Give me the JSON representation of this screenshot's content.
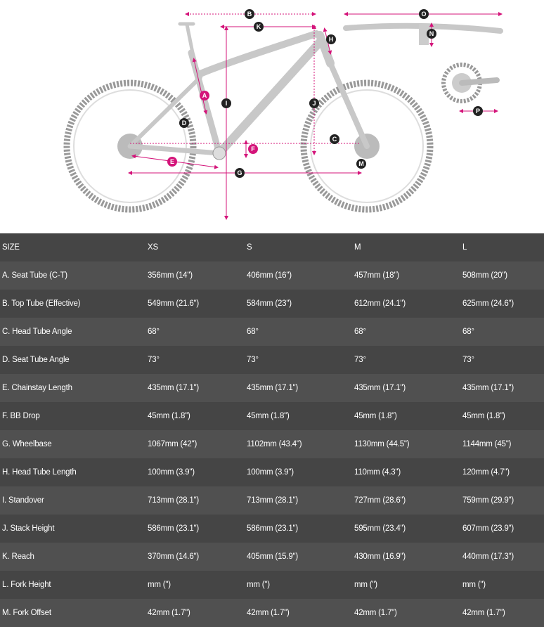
{
  "diagram": {
    "labels": [
      "A",
      "B",
      "C",
      "D",
      "E",
      "F",
      "G",
      "H",
      "I",
      "J",
      "K",
      "M",
      "N",
      "O",
      "P"
    ],
    "accent_color": "#d4147a",
    "frame_color": "#c8c8c8"
  },
  "table": {
    "header": [
      "SIZE",
      "XS",
      "S",
      "M",
      "L"
    ],
    "rows": [
      [
        "A. Seat Tube (C-T)",
        "356mm (14\")",
        "406mm (16\")",
        "457mm (18\")",
        "508mm (20\")"
      ],
      [
        "B. Top Tube (Effective)",
        "549mm (21.6\")",
        "584mm (23\")",
        "612mm (24.1\")",
        "625mm (24.6\")"
      ],
      [
        "C. Head Tube Angle",
        "68°",
        "68°",
        "68°",
        "68°"
      ],
      [
        "D. Seat Tube Angle",
        "73°",
        "73°",
        "73°",
        "73°"
      ],
      [
        "E. Chainstay Length",
        "435mm (17.1\")",
        "435mm (17.1\")",
        "435mm (17.1\")",
        "435mm (17.1\")"
      ],
      [
        "F. BB Drop",
        "45mm (1.8\")",
        "45mm (1.8\")",
        "45mm (1.8\")",
        "45mm (1.8\")"
      ],
      [
        "G. Wheelbase",
        "1067mm (42\")",
        "1102mm (43.4\")",
        "1130mm (44.5\")",
        "1144mm (45\")"
      ],
      [
        "H. Head Tube Length",
        "100mm (3.9\")",
        "100mm (3.9\")",
        "110mm (4.3\")",
        "120mm (4.7\")"
      ],
      [
        "I. Standover",
        "713mm (28.1\")",
        "713mm (28.1\")",
        "727mm (28.6\")",
        "759mm (29.9\")"
      ],
      [
        "J. Stack Height",
        "586mm (23.1\")",
        "586mm (23.1\")",
        "595mm (23.4\")",
        "607mm (23.9\")"
      ],
      [
        "K. Reach",
        "370mm (14.6\")",
        "405mm (15.9\")",
        "430mm (16.9\")",
        "440mm (17.3\")"
      ],
      [
        "L. Fork Height",
        "mm (\")",
        "mm (\")",
        "mm (\")",
        "mm (\")"
      ],
      [
        "M. Fork Offset",
        "42mm (1.7\")",
        "42mm (1.7\")",
        "42mm (1.7\")",
        "42mm (1.7\")"
      ]
    ]
  }
}
